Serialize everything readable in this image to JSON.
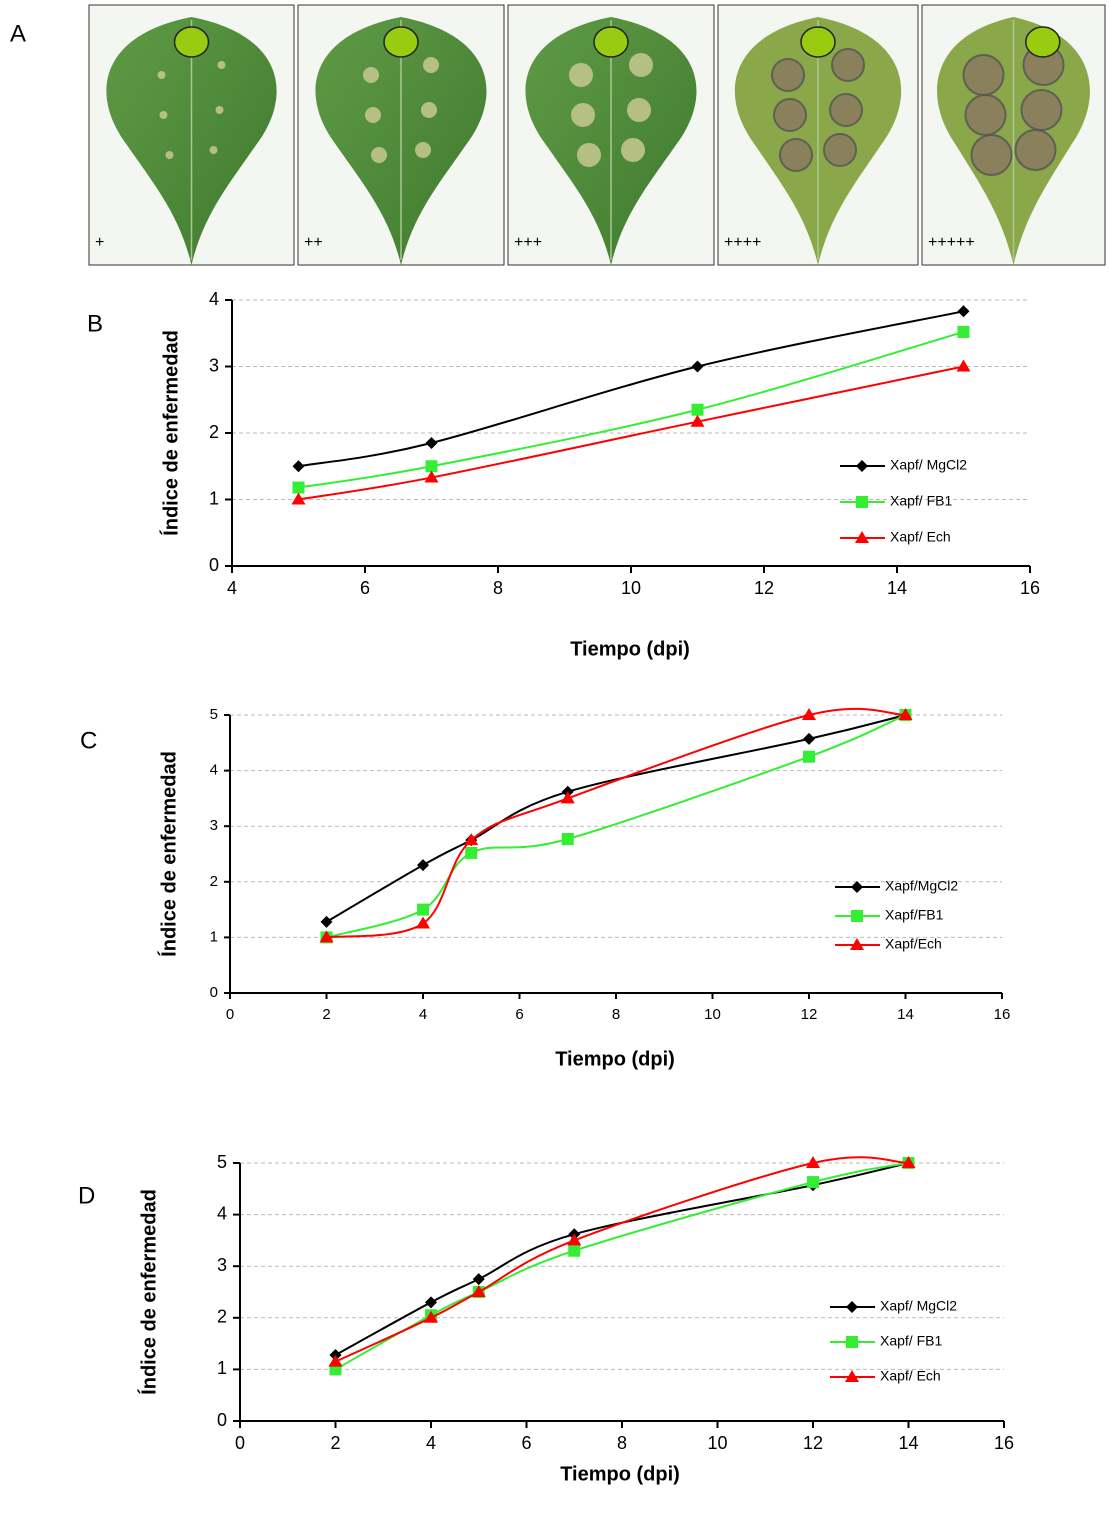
{
  "panel_a": {
    "label": "A",
    "images": [
      "+",
      "++",
      "+++",
      "++++",
      "+++++"
    ]
  },
  "chart_data": [
    {
      "type": "line",
      "panel": "B",
      "x_label": "Tiempo (dpi)",
      "y_label": "Índice de enfermedad",
      "x": [
        5,
        7,
        11,
        15
      ],
      "xlim": [
        4,
        16
      ],
      "xticks": [
        4,
        6,
        8,
        10,
        12,
        14,
        16
      ],
      "ylim": [
        0,
        4
      ],
      "yticks": [
        0,
        1,
        2,
        3,
        4
      ],
      "grid": true,
      "legend": "right",
      "series": [
        {
          "name": "Xapf/ MgCl2",
          "color": "#000000",
          "values": [
            1.5,
            1.85,
            3.0,
            3.83
          ]
        },
        {
          "name": "Xapf/ FB1",
          "color": "#33ee33",
          "values": [
            1.18,
            1.5,
            2.35,
            3.52
          ]
        },
        {
          "name": "Xapf/ Ech",
          "color": "#ff0000",
          "values": [
            1.0,
            1.33,
            2.17,
            3.0
          ]
        }
      ]
    },
    {
      "type": "line",
      "panel": "C",
      "x_label": "Tiempo (dpi)",
      "y_label": "Índice de enfermedad",
      "x": [
        2,
        4,
        5,
        7,
        12,
        14
      ],
      "xlim": [
        0,
        16
      ],
      "xticks": [
        0,
        2,
        4,
        6,
        8,
        10,
        12,
        14,
        16
      ],
      "ylim": [
        0,
        5
      ],
      "yticks": [
        0,
        1,
        2,
        3,
        4,
        5
      ],
      "grid": true,
      "legend": "right",
      "series": [
        {
          "name": "Xapf/MgCl2",
          "color": "#000000",
          "values": [
            1.28,
            2.3,
            2.75,
            3.62,
            4.57,
            5.0
          ]
        },
        {
          "name": "Xapf/FB1",
          "color": "#33ee33",
          "values": [
            1.0,
            1.5,
            2.52,
            2.77,
            4.25,
            5.0
          ]
        },
        {
          "name": "Xapf/Ech",
          "color": "#ff0000",
          "values": [
            1.0,
            1.25,
            2.75,
            3.5,
            5.0,
            5.0
          ]
        }
      ]
    },
    {
      "type": "line",
      "panel": "D",
      "x_label": "Tiempo (dpi)",
      "y_label": "Índice de enfermedad",
      "x": [
        2,
        4,
        5,
        7,
        12,
        14
      ],
      "xlim": [
        0,
        16
      ],
      "xticks": [
        0,
        2,
        4,
        6,
        8,
        10,
        12,
        14,
        16
      ],
      "ylim": [
        0,
        5
      ],
      "yticks": [
        0,
        1,
        2,
        3,
        4,
        5
      ],
      "grid": true,
      "legend": "right",
      "series": [
        {
          "name": "Xapf/ MgCl2",
          "color": "#000000",
          "values": [
            1.28,
            2.3,
            2.75,
            3.62,
            4.57,
            5.0
          ]
        },
        {
          "name": "Xapf/ FB1",
          "color": "#33ee33",
          "values": [
            1.0,
            2.05,
            2.5,
            3.3,
            4.63,
            5.0
          ]
        },
        {
          "name": "Xapf/ Ech",
          "color": "#ff0000",
          "values": [
            1.15,
            2.0,
            2.5,
            3.5,
            5.0,
            5.0
          ]
        }
      ]
    }
  ]
}
